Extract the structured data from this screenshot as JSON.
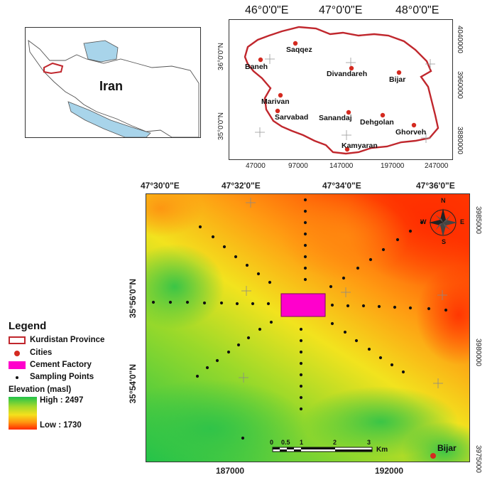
{
  "iran_map": {
    "label": "Iran"
  },
  "kurdistan_map": {
    "top_ticks": [
      "46°0'0\"E",
      "47°0'0\"E",
      "48°0'0\"E"
    ],
    "bottom_ticks": [
      "47000",
      "97000",
      "147000",
      "197000",
      "247000"
    ],
    "left_ticks": [
      "36°0'0\"N",
      "35°0'0\"N"
    ],
    "right_ticks": [
      "4040000",
      "3960000",
      "3880000"
    ],
    "cities": [
      {
        "name": "Saqqez"
      },
      {
        "name": "Baneh"
      },
      {
        "name": "Divandareh"
      },
      {
        "name": "Bijar"
      },
      {
        "name": "Marivan"
      },
      {
        "name": "Sarvabad"
      },
      {
        "name": "Sanandaj"
      },
      {
        "name": "Dehgolan"
      },
      {
        "name": "Ghorveh"
      },
      {
        "name": "Kamyaran"
      }
    ]
  },
  "main_map": {
    "top_ticks": [
      "47°30'0\"E",
      "47°32'0\"E",
      "47°34'0\"E",
      "47°36'0\"E"
    ],
    "bottom_ticks": [
      "187000",
      "192000"
    ],
    "left_ticks": [
      "35°56'0\"N",
      "35°54'0\"N"
    ],
    "right_ticks": [
      "3985000",
      "3980000",
      "3975000"
    ],
    "city_label": "Bijar",
    "compass": {
      "n": "N",
      "s": "S",
      "e": "E",
      "w": "W"
    },
    "scale_bar": {
      "labels": [
        "0",
        "0.5",
        "1",
        "2",
        "3"
      ],
      "unit": "Km"
    }
  },
  "legend": {
    "title": "Legend",
    "items": [
      "Kurdistan Province",
      "Cities",
      "Cement Factory",
      "Sampling Points"
    ],
    "elevation_title": "Elevation (masl)",
    "high": "High : 2497",
    "low": "Low : 1730"
  },
  "colors": {
    "province_outline": "#c0272d",
    "city_dot": "#d42a20",
    "cement_factory": "#ff00cc",
    "sampling_point": "#111111",
    "water": "#a8d4ea",
    "elev_high": "#22c34a",
    "elev_low": "#ff2a00"
  }
}
